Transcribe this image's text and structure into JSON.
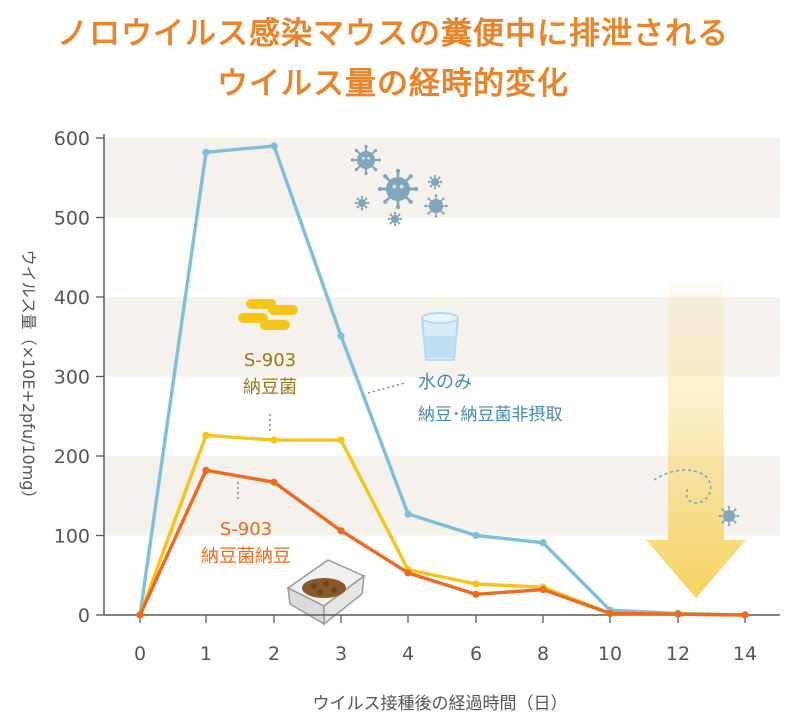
{
  "title_line1": "ノロウイルス感染マウスの糞便中に排泄される",
  "title_line2": "ウイルス量の経時的変化",
  "colors": {
    "title": "#e8842a",
    "water": "#7dbfdc",
    "s903": "#f5c51c",
    "natto": "#ee6a1f",
    "band": "#f5f1ec",
    "axis": "#5a5a5a"
  },
  "chart_data": {
    "type": "line",
    "xlabel": "ウイルス接種後の経過時間（日）",
    "ylabel": "ウイルス量（×10E+2pfu/10mg）",
    "x_ticks": [
      "0",
      "1",
      "2",
      "3",
      "4",
      "6",
      "8",
      "10",
      "12",
      "14"
    ],
    "y_ticks": [
      "0",
      "100",
      "200",
      "300",
      "400",
      "500",
      "600"
    ],
    "ylim": [
      0,
      600
    ],
    "grid": false,
    "series": [
      {
        "name": "水のみ 納豆･納豆菌非摂取",
        "label_line1": "水のみ",
        "label_line2": "納豆･納豆菌非摂取",
        "color": "#7dbfdc",
        "x": [
          "0",
          "1",
          "2",
          "3",
          "4",
          "6",
          "8",
          "10",
          "12",
          "14"
        ],
        "values": [
          0,
          582,
          590,
          351,
          127,
          100,
          91,
          6,
          2,
          0
        ]
      },
      {
        "name": "S-903 納豆菌",
        "label_line1": "S-903",
        "label_line2": "納豆菌",
        "color": "#f5c51c",
        "x": [
          "0",
          "1",
          "2",
          "3",
          "4",
          "6",
          "8",
          "10",
          "12",
          "14"
        ],
        "values": [
          0,
          226,
          220,
          220,
          57,
          39,
          35,
          2,
          1,
          0
        ]
      },
      {
        "name": "S-903 納豆菌納豆",
        "label_line1": "S-903",
        "label_line2": "納豆菌納豆",
        "color": "#ee6a1f",
        "x": [
          "0",
          "1",
          "2",
          "3",
          "4",
          "6",
          "8",
          "10",
          "12",
          "14"
        ],
        "values": [
          0,
          182,
          167,
          106,
          53,
          26,
          32,
          2,
          1,
          0
        ]
      }
    ]
  }
}
